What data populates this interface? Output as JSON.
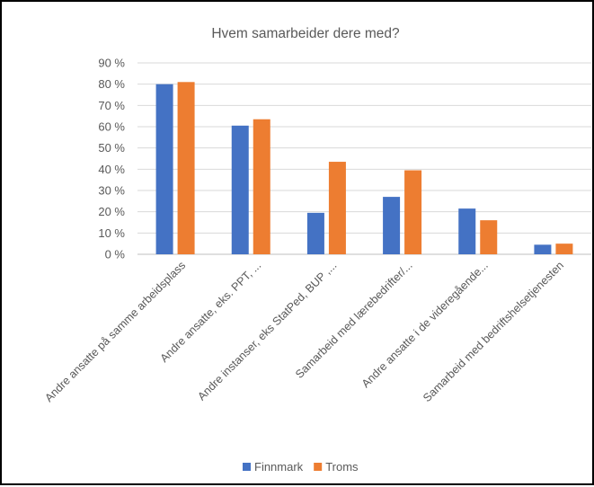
{
  "chart_data": {
    "type": "bar",
    "title": "Hvem samarbeider dere med?",
    "xlabel": "",
    "ylabel": "",
    "ylim": [
      0,
      90
    ],
    "yticks": [
      0,
      10,
      20,
      30,
      40,
      50,
      60,
      70,
      80,
      90
    ],
    "ytick_labels": [
      "0 %",
      "10 %",
      "20 %",
      "30 %",
      "40 %",
      "50 %",
      "60 %",
      "70 %",
      "80 %",
      "90 %"
    ],
    "grid": true,
    "legend_position": "bottom",
    "categories": [
      "Andre ansatte på samme arbeidsplass",
      "Andre ansatte, eks. PPT, ...",
      "Andre instanser, eks StatPed, BUP ,...",
      "Samarbeid med lærebedrifter/...",
      "Andre ansatte i de videregående...",
      "Samarbeid med bedriftshelsetjenesten"
    ],
    "series": [
      {
        "name": "Finnmark",
        "color": "#4472C4",
        "values": [
          80,
          60.5,
          19.5,
          27,
          21.5,
          4.5
        ]
      },
      {
        "name": "Troms",
        "color": "#ED7D31",
        "values": [
          81,
          63.5,
          43.5,
          39.5,
          16,
          5
        ]
      }
    ]
  }
}
